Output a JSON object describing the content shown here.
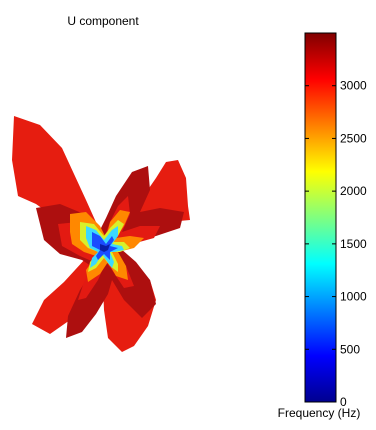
{
  "chart_data": {
    "type": "heatmap",
    "title": "U component",
    "colorbar": {
      "label": "Frequency (Hz)",
      "range": [
        0,
        3500
      ],
      "ticks": [
        {
          "value": 0,
          "label": "0"
        },
        {
          "value": 500,
          "label": "500"
        },
        {
          "value": 1000,
          "label": "1000"
        },
        {
          "value": 1500,
          "label": "1500"
        },
        {
          "value": 2000,
          "label": "2000"
        },
        {
          "value": 2500,
          "label": "2500"
        },
        {
          "value": 3000,
          "label": "3000"
        }
      ],
      "colormap": "jet"
    },
    "levels": [
      3450,
      3200,
      3000,
      2500,
      1800,
      1200,
      700,
      300
    ]
  }
}
